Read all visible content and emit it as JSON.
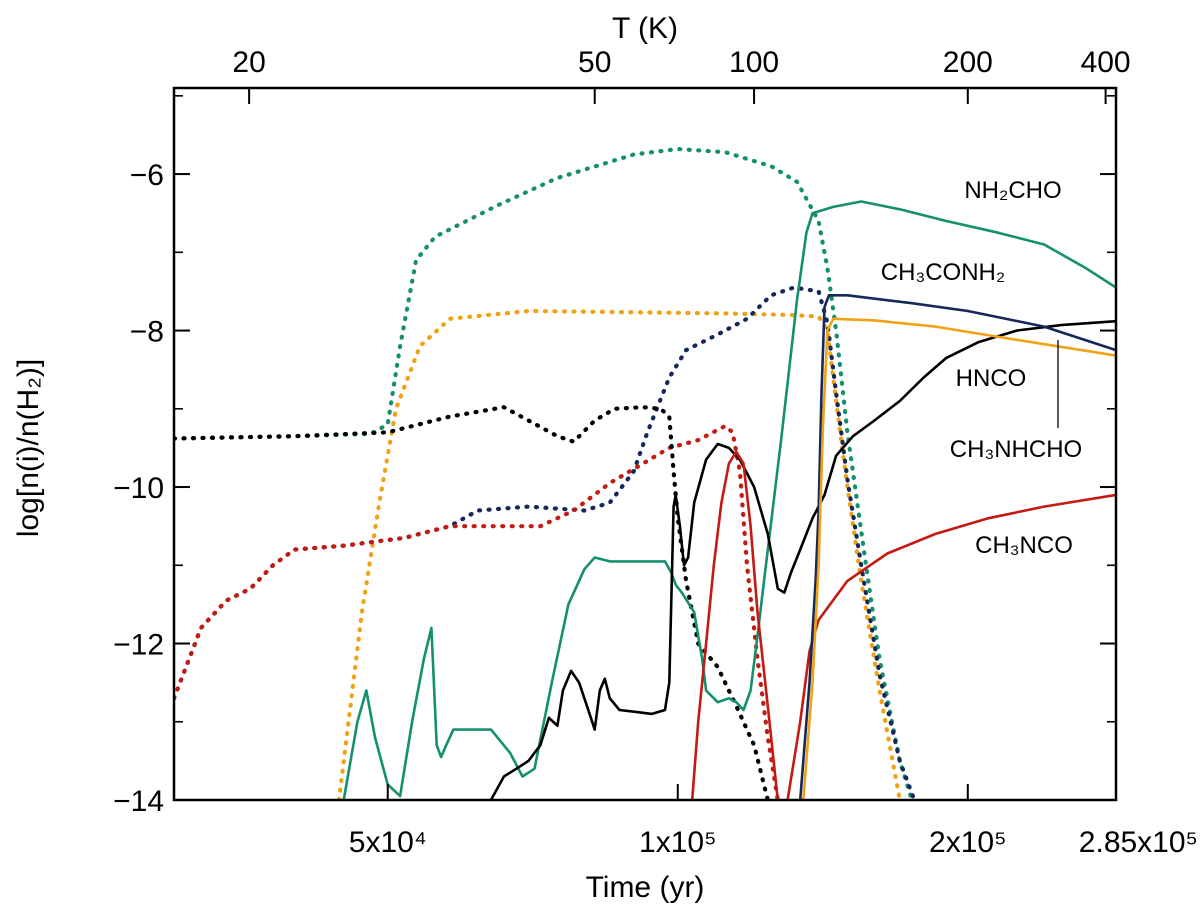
{
  "chart_data": {
    "type": "line",
    "xlabel": "Time (yr)",
    "x2label": "T (K)",
    "ylabel": "log[n(i)/n(H₂)]",
    "xlim": [
      30000,
      285000
    ],
    "ylim": [
      -14,
      -4.9
    ],
    "x_scale": "log",
    "x_ticks": [
      {
        "value": 50000,
        "label": "5x10⁴"
      },
      {
        "value": 100000,
        "label": "1x10⁵"
      },
      {
        "value": 200000,
        "label": "2x10⁵"
      },
      {
        "value": 285000,
        "label": "2.85x10⁵"
      }
    ],
    "x2_ticks": [
      {
        "value": 20,
        "label": "20",
        "x": 35900
      },
      {
        "value": 50,
        "label": "50",
        "x": 82000
      },
      {
        "value": 100,
        "label": "100",
        "x": 120000
      },
      {
        "value": 200,
        "label": "200",
        "x": 200000
      },
      {
        "value": 400,
        "label": "400",
        "x": 278000
      }
    ],
    "y_ticks": [
      {
        "value": -6,
        "label": "−6"
      },
      {
        "value": -8,
        "label": "−8"
      },
      {
        "value": -10,
        "label": "−10"
      },
      {
        "value": -12,
        "label": "−12"
      },
      {
        "value": -14,
        "label": "−14"
      }
    ],
    "annotations": {
      "nh2cho": {
        "text": "NH₂CHO",
        "x": 210000,
        "y": -6.34
      },
      "ch3conh2": {
        "text": "CH₃CONH₂",
        "x": 185000,
        "y": -7.45
      },
      "hnco": {
        "text": "HNCO",
        "x": 218000,
        "y": -8.95
      },
      "ch3nhcho": {
        "text": "CH₃NHCHO",
        "x": 225000,
        "y": -9.94
      },
      "ch3nco": {
        "text": "CH₃NCO",
        "x": 228000,
        "y": -10.8
      }
    },
    "colors": {
      "teal": "#14906e",
      "navy": "#16275a",
      "orange": "#f0a215",
      "red": "#c41a12",
      "black": "#000000"
    },
    "series": [
      {
        "color": "teal",
        "style": "dotted",
        "points": [
          [
            30000,
            -9.38
          ],
          [
            40000,
            -9.35
          ],
          [
            48000,
            -9.32
          ],
          [
            50000,
            -9.2
          ],
          [
            51500,
            -8.2
          ],
          [
            53500,
            -7.1
          ],
          [
            56000,
            -6.8
          ],
          [
            65000,
            -6.4
          ],
          [
            75000,
            -6.05
          ],
          [
            90000,
            -5.75
          ],
          [
            100000,
            -5.68
          ],
          [
            112000,
            -5.72
          ],
          [
            125000,
            -5.9
          ],
          [
            133000,
            -6.1
          ],
          [
            140000,
            -6.6
          ],
          [
            143000,
            -7.2
          ],
          [
            146000,
            -8.0
          ],
          [
            150000,
            -9.3
          ],
          [
            156000,
            -10.8
          ],
          [
            162000,
            -12.2
          ],
          [
            170000,
            -13.5
          ],
          [
            175000,
            -14.0
          ]
        ]
      },
      {
        "color": "orange",
        "style": "dotted",
        "points": [
          [
            44500,
            -14.0
          ],
          [
            47000,
            -11.6
          ],
          [
            49000,
            -10.2
          ],
          [
            51000,
            -9.0
          ],
          [
            54000,
            -8.2
          ],
          [
            58000,
            -7.85
          ],
          [
            70000,
            -7.75
          ],
          [
            110000,
            -7.78
          ],
          [
            130000,
            -7.8
          ],
          [
            140000,
            -7.82
          ],
          [
            143000,
            -8.0
          ],
          [
            146000,
            -8.9
          ],
          [
            150000,
            -10.0
          ],
          [
            155000,
            -11.2
          ],
          [
            162000,
            -12.6
          ],
          [
            170000,
            -14.0
          ]
        ]
      },
      {
        "color": "navy",
        "style": "dotted",
        "points": [
          [
            30000,
            -12.7
          ],
          [
            32000,
            -11.8
          ],
          [
            34000,
            -11.45
          ],
          [
            36000,
            -11.3
          ],
          [
            38000,
            -11.0
          ],
          [
            40000,
            -10.8
          ],
          [
            45000,
            -10.75
          ],
          [
            52000,
            -10.65
          ],
          [
            58000,
            -10.5
          ],
          [
            62000,
            -10.3
          ],
          [
            70000,
            -10.25
          ],
          [
            80000,
            -10.3
          ],
          [
            85000,
            -10.2
          ],
          [
            90000,
            -9.8
          ],
          [
            93000,
            -9.3
          ],
          [
            98000,
            -8.6
          ],
          [
            102000,
            -8.25
          ],
          [
            110000,
            -8.05
          ],
          [
            118000,
            -7.85
          ],
          [
            125000,
            -7.55
          ],
          [
            132000,
            -7.45
          ],
          [
            140000,
            -7.5
          ],
          [
            143000,
            -7.9
          ],
          [
            146000,
            -8.8
          ],
          [
            150000,
            -9.9
          ],
          [
            155000,
            -11.0
          ],
          [
            162000,
            -12.4
          ],
          [
            170000,
            -13.5
          ],
          [
            176000,
            -14.0
          ]
        ]
      },
      {
        "color": "red",
        "style": "dotted",
        "points": [
          [
            30000,
            -12.7
          ],
          [
            32000,
            -11.8
          ],
          [
            34000,
            -11.45
          ],
          [
            36000,
            -11.3
          ],
          [
            38000,
            -11.0
          ],
          [
            40000,
            -10.8
          ],
          [
            45000,
            -10.75
          ],
          [
            52000,
            -10.65
          ],
          [
            58000,
            -10.5
          ],
          [
            65000,
            -10.5
          ],
          [
            72000,
            -10.5
          ],
          [
            78000,
            -10.3
          ],
          [
            85000,
            -9.95
          ],
          [
            92000,
            -9.7
          ],
          [
            98000,
            -9.5
          ],
          [
            105000,
            -9.4
          ],
          [
            112000,
            -9.22
          ],
          [
            114000,
            -9.3
          ],
          [
            116000,
            -9.8
          ],
          [
            118000,
            -11.0
          ],
          [
            121000,
            -12.2
          ],
          [
            124000,
            -13.2
          ],
          [
            127000,
            -14.0
          ]
        ]
      },
      {
        "color": "black",
        "style": "dotted",
        "points": [
          [
            30000,
            -9.38
          ],
          [
            40000,
            -9.35
          ],
          [
            50000,
            -9.3
          ],
          [
            58000,
            -9.1
          ],
          [
            66000,
            -8.98
          ],
          [
            70000,
            -9.15
          ],
          [
            75000,
            -9.35
          ],
          [
            78000,
            -9.42
          ],
          [
            82000,
            -9.15
          ],
          [
            86000,
            -9.0
          ],
          [
            92000,
            -8.98
          ],
          [
            96000,
            -9.0
          ],
          [
            98000,
            -9.1
          ],
          [
            99000,
            -9.8
          ],
          [
            100000,
            -10.4
          ],
          [
            102000,
            -11.2
          ],
          [
            105000,
            -12.0
          ],
          [
            110000,
            -12.3
          ],
          [
            115000,
            -12.8
          ],
          [
            120000,
            -13.3
          ],
          [
            124000,
            -14.0
          ]
        ]
      },
      {
        "color": "teal",
        "style": "solid",
        "points": [
          [
            45000,
            -14.0
          ],
          [
            46500,
            -13.0
          ],
          [
            47500,
            -12.6
          ],
          [
            48500,
            -13.2
          ],
          [
            50000,
            -13.8
          ],
          [
            51500,
            -13.95
          ],
          [
            53000,
            -13.0
          ],
          [
            54500,
            -12.2
          ],
          [
            55500,
            -11.8
          ],
          [
            56200,
            -13.3
          ],
          [
            56800,
            -13.45
          ],
          [
            57500,
            -13.3
          ],
          [
            58500,
            -13.1
          ],
          [
            61000,
            -13.1
          ],
          [
            64000,
            -13.1
          ],
          [
            67000,
            -13.4
          ],
          [
            69000,
            -13.7
          ],
          [
            71000,
            -13.6
          ],
          [
            74000,
            -12.5
          ],
          [
            77000,
            -11.5
          ],
          [
            80000,
            -11.05
          ],
          [
            82000,
            -10.9
          ],
          [
            85000,
            -10.95
          ],
          [
            97000,
            -10.95
          ],
          [
            98500,
            -11.1
          ],
          [
            99500,
            -11.25
          ],
          [
            101000,
            -11.35
          ],
          [
            104000,
            -11.6
          ],
          [
            106000,
            -12.2
          ],
          [
            107000,
            -12.6
          ],
          [
            110000,
            -12.75
          ],
          [
            113000,
            -12.7
          ],
          [
            115000,
            -12.75
          ],
          [
            117000,
            -12.85
          ],
          [
            119000,
            -12.6
          ],
          [
            121000,
            -11.9
          ],
          [
            124000,
            -10.8
          ],
          [
            128000,
            -9.4
          ],
          [
            133000,
            -7.6
          ],
          [
            136000,
            -6.75
          ],
          [
            138000,
            -6.5
          ],
          [
            145000,
            -6.42
          ],
          [
            155000,
            -6.35
          ],
          [
            170000,
            -6.45
          ],
          [
            190000,
            -6.6
          ],
          [
            215000,
            -6.75
          ],
          [
            240000,
            -6.9
          ],
          [
            265000,
            -7.2
          ],
          [
            285000,
            -7.45
          ]
        ]
      },
      {
        "color": "black",
        "style": "solid",
        "points": [
          [
            64000,
            -14.0
          ],
          [
            66000,
            -13.7
          ],
          [
            68000,
            -13.6
          ],
          [
            70000,
            -13.5
          ],
          [
            72000,
            -13.3
          ],
          [
            73500,
            -12.95
          ],
          [
            75000,
            -13.05
          ],
          [
            76000,
            -12.6
          ],
          [
            77500,
            -12.35
          ],
          [
            79000,
            -12.5
          ],
          [
            81000,
            -12.9
          ],
          [
            82000,
            -13.1
          ],
          [
            83000,
            -12.6
          ],
          [
            84000,
            -12.45
          ],
          [
            85000,
            -12.7
          ],
          [
            87000,
            -12.85
          ],
          [
            94000,
            -12.9
          ],
          [
            97000,
            -12.85
          ],
          [
            98000,
            -12.5
          ],
          [
            99000,
            -10.25
          ],
          [
            99500,
            -10.1
          ],
          [
            100500,
            -10.5
          ],
          [
            101500,
            -11.0
          ],
          [
            102500,
            -10.9
          ],
          [
            104000,
            -10.2
          ],
          [
            107000,
            -9.65
          ],
          [
            110000,
            -9.45
          ],
          [
            113000,
            -9.5
          ],
          [
            116000,
            -9.65
          ],
          [
            120000,
            -10.0
          ],
          [
            124000,
            -10.6
          ],
          [
            127000,
            -11.3
          ],
          [
            129000,
            -11.35
          ],
          [
            131000,
            -11.1
          ],
          [
            134000,
            -10.8
          ],
          [
            138000,
            -10.4
          ],
          [
            142000,
            -10.1
          ],
          [
            146000,
            -9.6
          ],
          [
            152000,
            -9.35
          ],
          [
            160000,
            -9.15
          ],
          [
            170000,
            -8.9
          ],
          [
            180000,
            -8.6
          ],
          [
            190000,
            -8.35
          ],
          [
            205000,
            -8.15
          ],
          [
            225000,
            -8.0
          ],
          [
            250000,
            -7.93
          ],
          [
            285000,
            -7.88
          ]
        ]
      },
      {
        "color": "red",
        "style": "solid",
        "points": [
          [
            103500,
            -14.0
          ],
          [
            105000,
            -13.0
          ],
          [
            107000,
            -12.0
          ],
          [
            109000,
            -11.0
          ],
          [
            111000,
            -10.2
          ],
          [
            113000,
            -9.7
          ],
          [
            115000,
            -9.55
          ],
          [
            117000,
            -9.7
          ],
          [
            119000,
            -10.5
          ],
          [
            121000,
            -11.6
          ],
          [
            124000,
            -12.8
          ],
          [
            127000,
            -14.0
          ]
        ]
      },
      {
        "color": "red",
        "style": "solid",
        "points": [
          [
            130000,
            -14.0
          ],
          [
            134000,
            -13.0
          ],
          [
            137000,
            -12.1
          ],
          [
            140000,
            -11.7
          ],
          [
            150000,
            -11.2
          ],
          [
            165000,
            -10.85
          ],
          [
            185000,
            -10.6
          ],
          [
            210000,
            -10.4
          ],
          [
            240000,
            -10.25
          ],
          [
            285000,
            -10.1
          ]
        ]
      },
      {
        "color": "navy",
        "style": "solid",
        "points": [
          [
            134000,
            -14.0
          ],
          [
            137000,
            -12.5
          ],
          [
            139000,
            -11.2
          ],
          [
            140000,
            -10.3
          ],
          [
            141000,
            -8.8
          ],
          [
            142000,
            -7.7
          ],
          [
            143500,
            -7.55
          ],
          [
            150000,
            -7.55
          ],
          [
            175000,
            -7.65
          ],
          [
            200000,
            -7.75
          ],
          [
            240000,
            -7.95
          ],
          [
            285000,
            -8.25
          ]
        ]
      },
      {
        "color": "orange",
        "style": "solid",
        "points": [
          [
            135000,
            -14.0
          ],
          [
            138000,
            -12.5
          ],
          [
            140000,
            -11.0
          ],
          [
            141500,
            -9.2
          ],
          [
            143000,
            -8.0
          ],
          [
            145000,
            -7.85
          ],
          [
            160000,
            -7.87
          ],
          [
            185000,
            -7.95
          ],
          [
            220000,
            -8.1
          ],
          [
            285000,
            -8.32
          ]
        ]
      }
    ]
  }
}
